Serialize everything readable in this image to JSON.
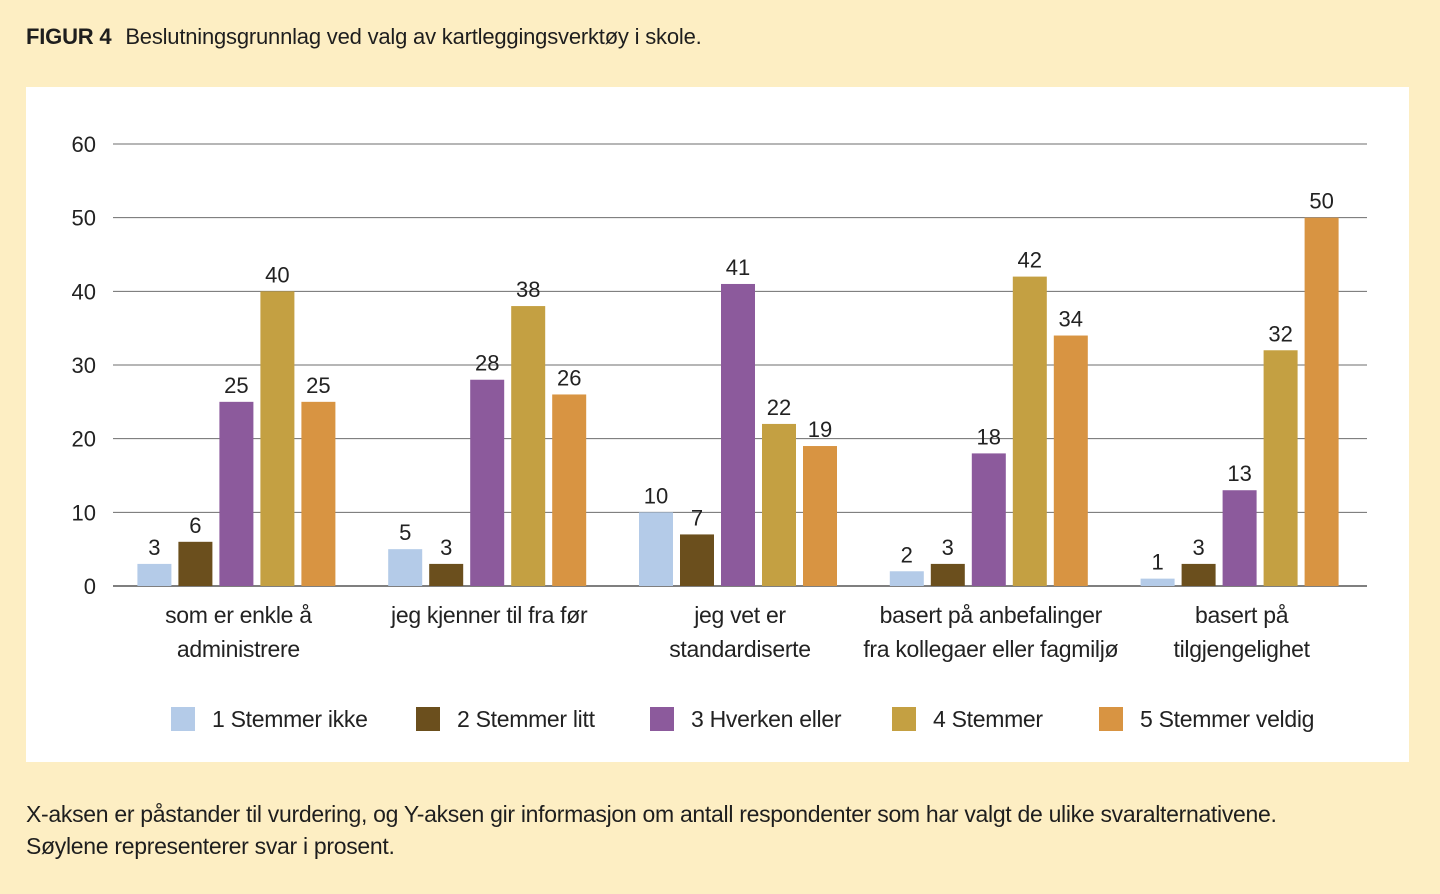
{
  "figure": {
    "label": "FIGUR 4",
    "title": "Beslutningsgrunnlag ved valg av kartleggingsverktøy i skole."
  },
  "caption": {
    "line1": "X-aksen er påstander til vurdering, og Y-aksen gir informasjon om antall respondenter som har valgt de ulike svaralternativene.",
    "line2": "Søylene representerer svar i prosent."
  },
  "chart_data": {
    "type": "bar",
    "title": "",
    "xlabel": "",
    "ylabel": "",
    "ylim": [
      0,
      60
    ],
    "yticks": [
      0,
      10,
      20,
      30,
      40,
      50,
      60
    ],
    "grid": true,
    "legend_position": "bottom",
    "categories": [
      [
        "som er enkle å",
        "administrere"
      ],
      [
        "jeg kjenner til fra før"
      ],
      [
        "jeg vet er",
        "standardiserte"
      ],
      [
        "basert på anbefalinger",
        "fra kollegaer eller fagmiljø"
      ],
      [
        "basert på",
        "tilgjengelighet"
      ]
    ],
    "series": [
      {
        "name": "1 Stemmer ikke",
        "color": "#b4cbe8",
        "values": [
          3,
          5,
          10,
          2,
          1
        ]
      },
      {
        "name": "2 Stemmer litt",
        "color": "#6b4f1d",
        "values": [
          6,
          3,
          7,
          3,
          3
        ]
      },
      {
        "name": "3 Hverken eller",
        "color": "#8c5a9c",
        "values": [
          25,
          28,
          41,
          18,
          13
        ]
      },
      {
        "name": "4 Stemmer",
        "color": "#c4a042",
        "values": [
          40,
          38,
          22,
          42,
          32
        ]
      },
      {
        "name": "5 Stemmer veldig",
        "color": "#d89442",
        "values": [
          25,
          26,
          19,
          34,
          50
        ]
      }
    ]
  }
}
